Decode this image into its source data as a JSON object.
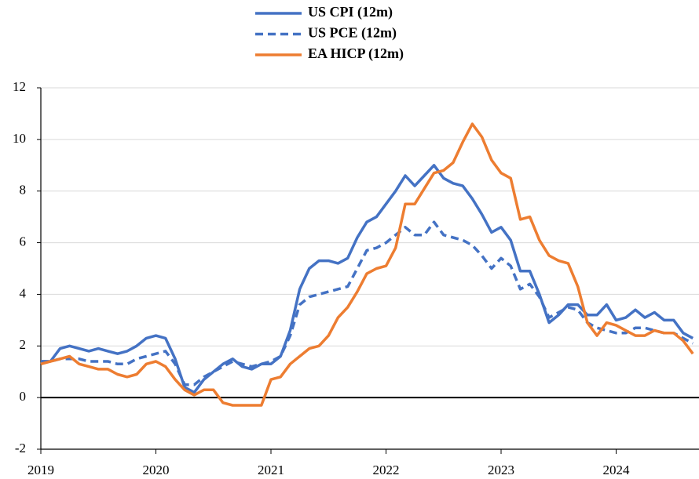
{
  "chart_data": {
    "type": "line",
    "x": [
      2019,
      2019.083,
      2019.167,
      2019.25,
      2019.333,
      2019.417,
      2019.5,
      2019.583,
      2019.667,
      2019.75,
      2019.833,
      2019.917,
      2020,
      2020.083,
      2020.167,
      2020.25,
      2020.333,
      2020.417,
      2020.5,
      2020.583,
      2020.667,
      2020.75,
      2020.833,
      2020.917,
      2021,
      2021.083,
      2021.167,
      2021.25,
      2021.333,
      2021.417,
      2021.5,
      2021.583,
      2021.667,
      2021.75,
      2021.833,
      2021.917,
      2022,
      2022.083,
      2022.167,
      2022.25,
      2022.333,
      2022.417,
      2022.5,
      2022.583,
      2022.667,
      2022.75,
      2022.833,
      2022.917,
      2023,
      2023.083,
      2023.167,
      2023.25,
      2023.333,
      2023.417,
      2023.5,
      2023.583,
      2023.667,
      2023.75,
      2023.833,
      2023.917,
      2024,
      2024.083,
      2024.167,
      2024.25,
      2024.333,
      2024.417,
      2024.5,
      2024.583,
      2024.667
    ],
    "series": [
      {
        "name": "US CPI (12m)",
        "color": "#4472c4",
        "dashed": false,
        "values": [
          1.4,
          1.4,
          1.9,
          2.0,
          1.9,
          1.8,
          1.9,
          1.8,
          1.7,
          1.8,
          2.0,
          2.3,
          2.4,
          2.3,
          1.5,
          0.4,
          0.2,
          0.7,
          1.0,
          1.3,
          1.5,
          1.2,
          1.1,
          1.3,
          1.3,
          1.6,
          2.6,
          4.2,
          5.0,
          5.3,
          5.3,
          5.2,
          5.4,
          6.2,
          6.8,
          7.0,
          7.5,
          8.0,
          8.6,
          8.2,
          8.6,
          9.0,
          8.5,
          8.3,
          8.2,
          7.7,
          7.1,
          6.4,
          6.6,
          6.1,
          4.9,
          4.9,
          4.0,
          2.9,
          3.2,
          3.6,
          3.6,
          3.2,
          3.2,
          3.6,
          3.0,
          3.1,
          3.4,
          3.1,
          3.3,
          3.0,
          3.0,
          2.5,
          2.3
        ]
      },
      {
        "name": "US PCE (12m)",
        "color": "#4472c4",
        "dashed": true,
        "values": [
          1.4,
          1.4,
          1.5,
          1.5,
          1.5,
          1.4,
          1.4,
          1.4,
          1.3,
          1.3,
          1.5,
          1.6,
          1.7,
          1.8,
          1.3,
          0.5,
          0.5,
          0.8,
          1.0,
          1.2,
          1.4,
          1.3,
          1.2,
          1.3,
          1.4,
          1.6,
          2.4,
          3.6,
          3.9,
          4.0,
          4.1,
          4.2,
          4.3,
          5.0,
          5.7,
          5.8,
          6.0,
          6.3,
          6.6,
          6.3,
          6.3,
          6.8,
          6.3,
          6.2,
          6.1,
          5.9,
          5.5,
          5.0,
          5.4,
          5.1,
          4.2,
          4.4,
          3.9,
          3.1,
          3.3,
          3.5,
          3.4,
          2.9,
          2.7,
          2.6,
          2.5,
          2.5,
          2.7,
          2.7,
          2.6,
          2.5,
          2.5,
          2.3,
          2.1
        ]
      },
      {
        "name": "EA HICP (12m)",
        "color": "#ed7d31",
        "dashed": false,
        "values": [
          1.3,
          1.4,
          1.5,
          1.6,
          1.3,
          1.2,
          1.1,
          1.1,
          0.9,
          0.8,
          0.9,
          1.3,
          1.4,
          1.2,
          0.7,
          0.3,
          0.1,
          0.3,
          0.3,
          -0.2,
          -0.3,
          -0.3,
          -0.3,
          -0.3,
          0.7,
          0.8,
          1.3,
          1.6,
          1.9,
          2.0,
          2.4,
          3.1,
          3.5,
          4.1,
          4.8,
          5.0,
          5.1,
          5.8,
          7.5,
          7.5,
          8.1,
          8.7,
          8.8,
          9.1,
          9.9,
          10.6,
          10.1,
          9.2,
          8.7,
          8.5,
          6.9,
          7.0,
          6.1,
          5.5,
          5.3,
          5.2,
          4.3,
          2.9,
          2.4,
          2.9,
          2.8,
          2.6,
          2.4,
          2.4,
          2.6,
          2.5,
          2.5,
          2.2,
          1.7
        ]
      }
    ],
    "xlim": [
      2019,
      2024.72
    ],
    "xticks": [
      2019,
      2020,
      2021,
      2022,
      2023,
      2024
    ],
    "ylim": [
      -2,
      12
    ],
    "yticks": [
      -2,
      0,
      2,
      4,
      6,
      8,
      10,
      12
    ],
    "grid": true,
    "legend": "top"
  }
}
